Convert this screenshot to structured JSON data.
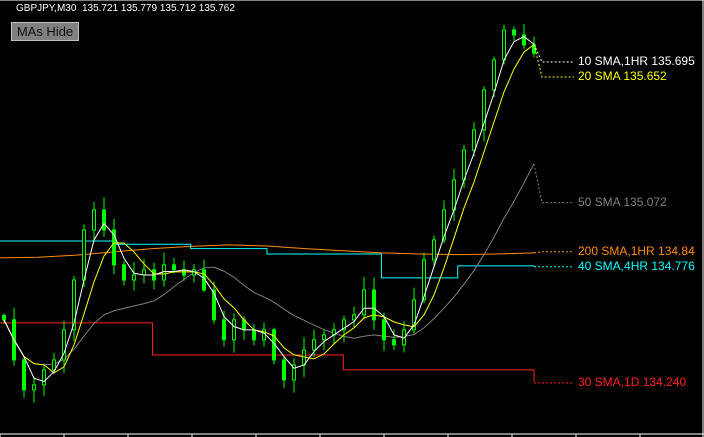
{
  "header": {
    "symbol": "GBPJPY,M30",
    "ohlc": "135.721 135.779 135.712 135.762"
  },
  "button": {
    "label": "MAs Hide"
  },
  "chart_data": {
    "type": "candlestick",
    "symbol": "GBPJPY",
    "timeframe": "M30",
    "ylim": [
      134.115,
      135.892
    ],
    "grid": false,
    "colors": {
      "bull": "#00ff00",
      "bear": "#00ff00",
      "background": "#000000"
    },
    "closes": [
      134.531,
      134.346,
      134.208,
      134.231,
      134.3,
      134.346,
      134.485,
      134.715,
      134.946,
      135.038,
      134.946,
      134.785,
      134.715,
      134.738,
      134.762,
      134.715,
      134.785,
      134.762,
      134.738,
      134.762,
      134.669,
      134.531,
      134.439,
      134.531,
      134.485,
      134.439,
      134.485,
      134.346,
      134.254,
      134.323,
      134.392,
      134.439,
      134.462,
      134.485,
      134.531,
      134.554,
      134.669,
      134.531,
      134.439,
      134.416,
      134.485,
      134.623,
      134.808,
      134.9,
      135.038,
      135.177,
      135.315,
      135.408,
      135.592,
      135.731,
      135.869,
      135.846,
      135.8,
      135.762
    ],
    "last_bar": {
      "open": 135.721,
      "high": 135.779,
      "low": 135.712,
      "close": 135.762
    },
    "moving_averages": [
      {
        "name": "10 SMA,1HR",
        "value": 135.695,
        "color": "#ffffff",
        "label": "10 SMA,1HR 135.695"
      },
      {
        "name": "20 SMA",
        "value": 135.652,
        "color": "#ffff00",
        "label": "20 SMA 135.652"
      },
      {
        "name": "50 SMA",
        "value": 135.072,
        "color": "#808080",
        "label": "50 SMA 135.072"
      },
      {
        "name": "200 SMA,1HR",
        "value": 134.84,
        "color": "#ff8c00",
        "label": "200 SMA,1HR 134.84",
        "points": [
          134.817,
          134.82,
          134.83,
          134.845,
          134.86,
          134.87,
          134.877,
          134.872,
          134.86,
          134.85,
          134.84,
          134.835,
          134.832,
          134.835,
          134.84
        ]
      },
      {
        "name": "40 SMA,4HR",
        "value": 134.776,
        "color": "#00ffff",
        "label": "40 SMA,4HR 134.776",
        "steps": [
          134.895,
          134.895,
          134.895,
          134.88,
          134.88,
          134.86,
          134.86,
          134.835,
          134.835,
          134.835,
          134.725,
          134.725,
          134.78,
          134.78,
          134.776
        ]
      },
      {
        "name": "30 SMA,1D",
        "value": 134.24,
        "color": "#ff2020",
        "label": "30 SMA,1D 134.240",
        "steps": [
          134.517,
          134.517,
          134.517,
          134.517,
          134.369,
          134.369,
          134.369,
          134.369,
          134.369,
          134.3,
          134.3,
          134.3,
          134.3,
          134.3,
          134.245
        ]
      }
    ]
  }
}
